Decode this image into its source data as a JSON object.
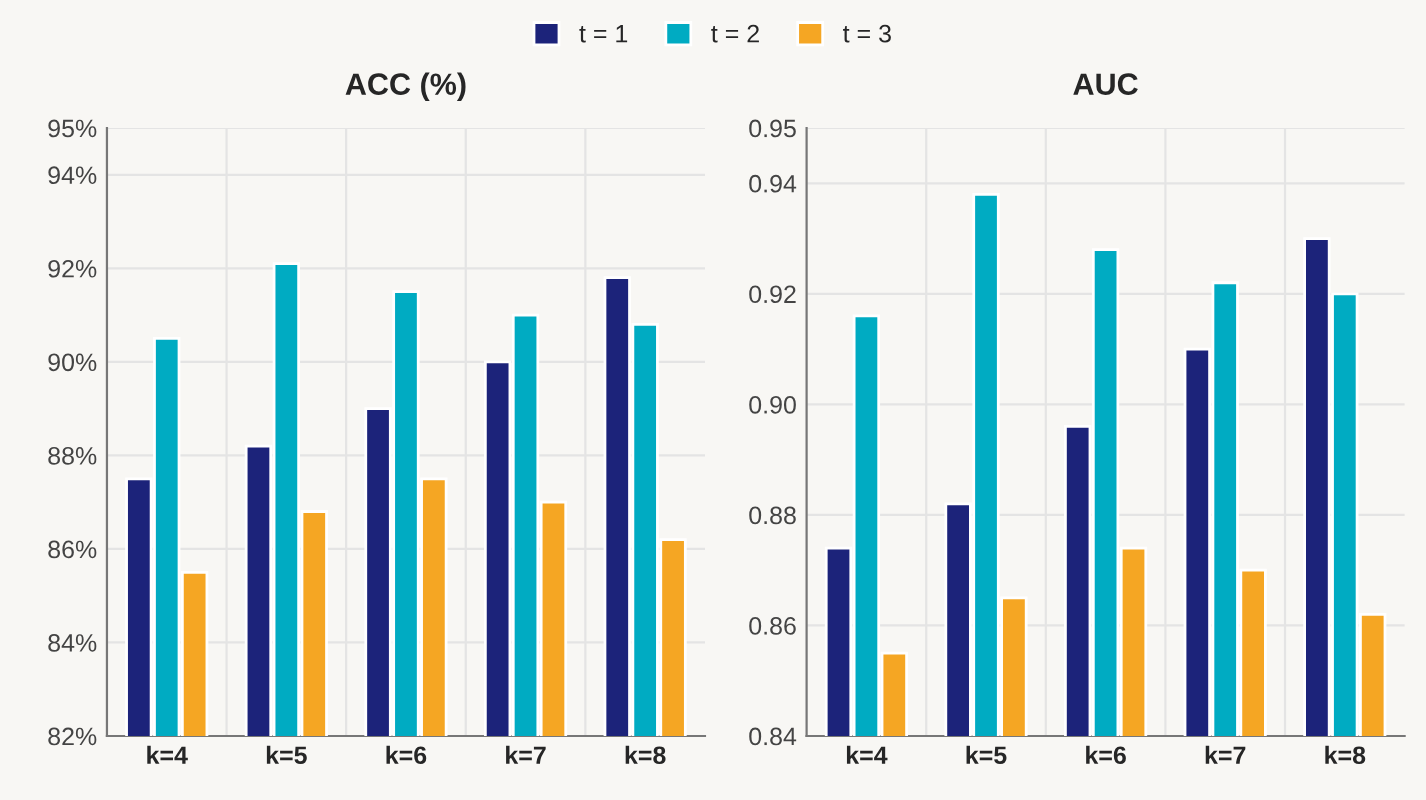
{
  "chart_data": [
    {
      "type": "bar",
      "title": "ACC (%)",
      "categories": [
        "k=4",
        "k=5",
        "k=6",
        "k=7",
        "k=8"
      ],
      "series": [
        {
          "name": "t = 1",
          "color": "#1c237a",
          "values": [
            87.5,
            88.2,
            89.0,
            90.0,
            91.8
          ]
        },
        {
          "name": "t = 2",
          "color": "#00abc2",
          "values": [
            90.5,
            92.1,
            91.5,
            91.0,
            90.8
          ]
        },
        {
          "name": "t = 3",
          "color": "#f5a623",
          "values": [
            85.5,
            86.8,
            87.5,
            87.0,
            86.2
          ]
        }
      ],
      "ylim": [
        82,
        95
      ],
      "yticks": [
        {
          "value": 82,
          "label": "82%"
        },
        {
          "value": 84,
          "label": "84%"
        },
        {
          "value": 86,
          "label": "86%"
        },
        {
          "value": 88,
          "label": "88%"
        },
        {
          "value": 90,
          "label": "90%"
        },
        {
          "value": 92,
          "label": "92%"
        },
        {
          "value": 94,
          "label": "94%"
        },
        {
          "value": 95,
          "label": "95%"
        }
      ],
      "grid": true,
      "legend": "top"
    },
    {
      "type": "bar",
      "title": "AUC",
      "categories": [
        "k=4",
        "k=5",
        "k=6",
        "k=7",
        "k=8"
      ],
      "series": [
        {
          "color": "#1c237a",
          "values": [
            0.874,
            0.882,
            0.896,
            0.91,
            0.93
          ]
        },
        {
          "color": "#00abc2",
          "values": [
            0.916,
            0.938,
            0.928,
            0.922,
            0.92
          ]
        },
        {
          "color": "#f5a623",
          "values": [
            0.855,
            0.865,
            0.874,
            0.87,
            0.862
          ]
        }
      ],
      "ylim": [
        0.84,
        0.95
      ],
      "yticks": [
        {
          "value": 0.84,
          "label": "0.84"
        },
        {
          "value": 0.86,
          "label": "0.86"
        },
        {
          "value": 0.88,
          "label": "0.88"
        },
        {
          "value": 0.9,
          "label": "0.90"
        },
        {
          "value": 0.92,
          "label": "0.92"
        },
        {
          "value": 0.94,
          "label": "0.94"
        },
        {
          "value": 0.95,
          "label": "0.95"
        }
      ],
      "grid": true
    }
  ]
}
